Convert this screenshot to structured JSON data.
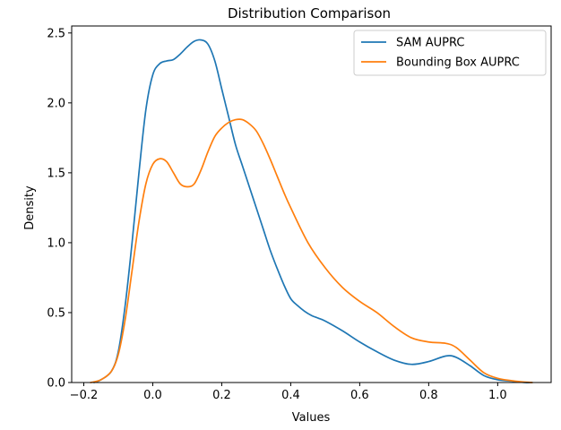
{
  "chart_data": {
    "type": "line",
    "title": "Distribution Comparison",
    "xlabel": "Values",
    "ylabel": "Density",
    "xlim": [
      -0.235,
      1.155
    ],
    "ylim": [
      0,
      2.55
    ],
    "xticks": [
      -0.2,
      0.0,
      0.2,
      0.4,
      0.6,
      0.8,
      1.0
    ],
    "xtick_labels": [
      "−0.2",
      "0.0",
      "0.2",
      "0.4",
      "0.6",
      "0.8",
      "1.0"
    ],
    "yticks": [
      0.0,
      0.5,
      1.0,
      1.5,
      2.0,
      2.5
    ],
    "ytick_labels": [
      "0.0",
      "0.5",
      "1.0",
      "1.5",
      "2.0",
      "2.5"
    ],
    "grid": false,
    "legend_position": "top-right",
    "series": [
      {
        "name": "SAM AUPRC",
        "color": "#1f77b4",
        "x": [
          -0.17,
          -0.15,
          -0.12,
          -0.1,
          -0.08,
          -0.06,
          -0.04,
          -0.02,
          0.0,
          0.02,
          0.04,
          0.06,
          0.08,
          0.1,
          0.12,
          0.14,
          0.16,
          0.18,
          0.2,
          0.22,
          0.24,
          0.26,
          0.28,
          0.3,
          0.32,
          0.34,
          0.36,
          0.38,
          0.4,
          0.42,
          0.44,
          0.46,
          0.48,
          0.5,
          0.55,
          0.6,
          0.65,
          0.7,
          0.75,
          0.8,
          0.85,
          0.88,
          0.92,
          0.96,
          1.0,
          1.04,
          1.08,
          1.1
        ],
        "values": [
          0.0,
          0.02,
          0.08,
          0.22,
          0.55,
          1.0,
          1.5,
          1.95,
          2.2,
          2.28,
          2.3,
          2.31,
          2.35,
          2.4,
          2.44,
          2.45,
          2.42,
          2.3,
          2.1,
          1.9,
          1.7,
          1.55,
          1.4,
          1.25,
          1.1,
          0.95,
          0.82,
          0.7,
          0.6,
          0.55,
          0.51,
          0.48,
          0.46,
          0.44,
          0.37,
          0.29,
          0.22,
          0.16,
          0.13,
          0.15,
          0.19,
          0.18,
          0.12,
          0.05,
          0.02,
          0.01,
          0.0,
          0.0
        ]
      },
      {
        "name": "Bounding Box AUPRC",
        "color": "#ff7f0e",
        "x": [
          -0.18,
          -0.15,
          -0.12,
          -0.1,
          -0.08,
          -0.06,
          -0.04,
          -0.02,
          0.0,
          0.02,
          0.04,
          0.06,
          0.08,
          0.1,
          0.12,
          0.14,
          0.16,
          0.18,
          0.2,
          0.22,
          0.24,
          0.26,
          0.28,
          0.3,
          0.32,
          0.34,
          0.36,
          0.38,
          0.4,
          0.45,
          0.5,
          0.55,
          0.6,
          0.65,
          0.7,
          0.75,
          0.8,
          0.85,
          0.88,
          0.92,
          0.96,
          1.0,
          1.05,
          1.1
        ],
        "values": [
          0.0,
          0.02,
          0.08,
          0.2,
          0.45,
          0.8,
          1.15,
          1.42,
          1.56,
          1.6,
          1.58,
          1.5,
          1.42,
          1.4,
          1.42,
          1.52,
          1.65,
          1.76,
          1.82,
          1.86,
          1.88,
          1.88,
          1.85,
          1.8,
          1.71,
          1.6,
          1.48,
          1.36,
          1.25,
          1.0,
          0.82,
          0.68,
          0.58,
          0.5,
          0.4,
          0.32,
          0.29,
          0.28,
          0.25,
          0.16,
          0.07,
          0.03,
          0.01,
          0.0
        ]
      }
    ]
  }
}
